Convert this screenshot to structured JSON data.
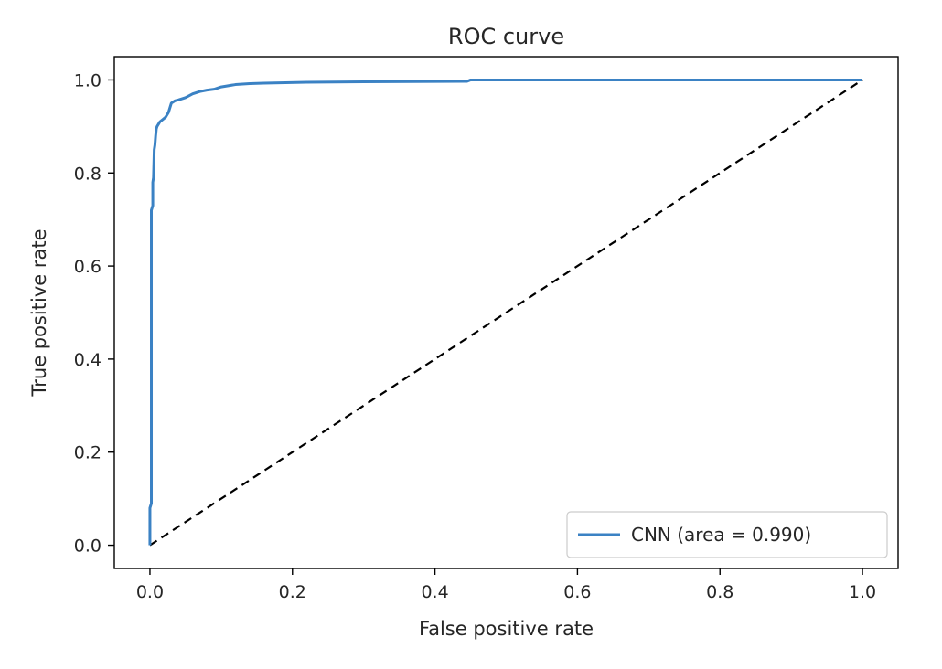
{
  "chart_data": {
    "type": "line",
    "title": "ROC curve",
    "xlabel": "False positive rate",
    "ylabel": "True positive rate",
    "xlim": [
      -0.05,
      1.05
    ],
    "ylim": [
      -0.05,
      1.05
    ],
    "xticks": [
      0.0,
      0.2,
      0.4,
      0.6,
      0.8,
      1.0
    ],
    "yticks": [
      0.0,
      0.2,
      0.4,
      0.6,
      0.8,
      1.0
    ],
    "tick_labels_x": [
      "0.0",
      "0.2",
      "0.4",
      "0.6",
      "0.8",
      "1.0"
    ],
    "tick_labels_y": [
      "0.0",
      "0.2",
      "0.4",
      "0.6",
      "0.8",
      "1.0"
    ],
    "grid": false,
    "legend_position": "lower-right",
    "series": [
      {
        "name": "CNN (area = 0.990)",
        "color": "#3b82c4",
        "style": "solid",
        "x": [
          0.0,
          0.0,
          0.002,
          0.002,
          0.004,
          0.004,
          0.005,
          0.006,
          0.007,
          0.008,
          0.009,
          0.01,
          0.012,
          0.014,
          0.018,
          0.022,
          0.026,
          0.03,
          0.035,
          0.04,
          0.05,
          0.06,
          0.07,
          0.08,
          0.09,
          0.1,
          0.12,
          0.14,
          0.16,
          0.22,
          0.3,
          0.445,
          0.45,
          0.6,
          0.8,
          1.0
        ],
        "y": [
          0.0,
          0.08,
          0.09,
          0.72,
          0.73,
          0.78,
          0.79,
          0.85,
          0.86,
          0.88,
          0.895,
          0.9,
          0.905,
          0.91,
          0.915,
          0.92,
          0.93,
          0.95,
          0.955,
          0.957,
          0.962,
          0.97,
          0.975,
          0.978,
          0.98,
          0.985,
          0.99,
          0.992,
          0.993,
          0.995,
          0.996,
          0.997,
          1.0,
          1.0,
          1.0,
          1.0
        ]
      },
      {
        "name": "",
        "color": "#000000",
        "style": "dashed",
        "x": [
          0.0,
          1.0
        ],
        "y": [
          0.0,
          1.0
        ]
      }
    ]
  }
}
